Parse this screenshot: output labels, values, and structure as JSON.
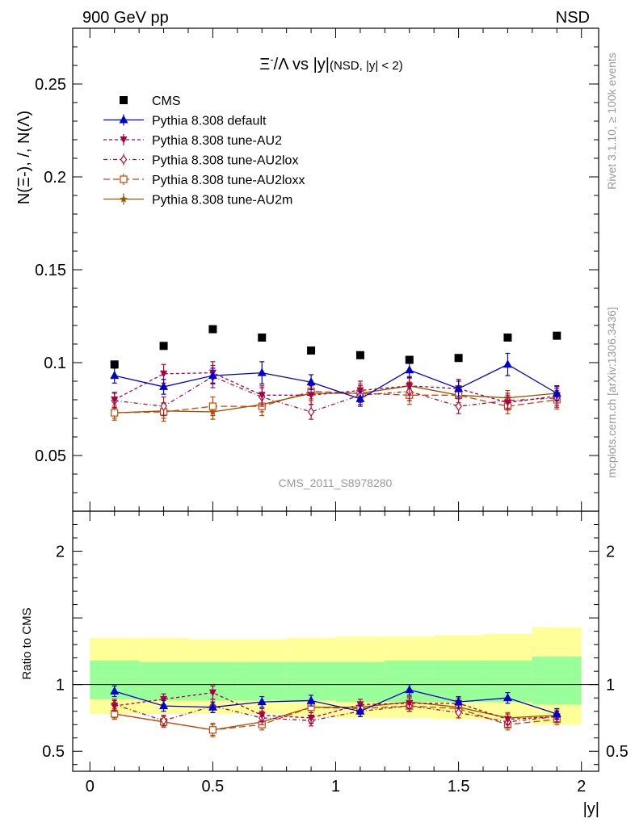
{
  "header": {
    "left": "900 GeV pp",
    "right": "NSD"
  },
  "watermarks": {
    "analysis": "CMS_2011_S8978280",
    "rivet": "Rivet 3.1.10, ≥ 100k events",
    "mcplots": "mcplots.cern.ch [arXiv:1306.3436]"
  },
  "chart_data": {
    "type": "scatter",
    "title": "Ξ-/Λ vs |y|(NSD, |y| < 2)",
    "title_cut": "(NSD, |y| < 2)",
    "xlabel": "|y|",
    "ylabel": "N(Ξ-), /, N(Λ)",
    "ratio_ylabel": "Ratio to CMS",
    "xlim": [
      -0.07,
      2.07
    ],
    "ylim": [
      0.02,
      0.28
    ],
    "ratio_ylim": [
      0.35,
      2.3
    ],
    "x_ticks": [
      "0",
      "0.5",
      "1",
      "1.5",
      "2"
    ],
    "y_ticks": [
      "0.05",
      "0.1",
      "0.15",
      "0.2",
      "0.25"
    ],
    "ratio_y_ticks": [
      "0.5",
      "1",
      "2"
    ],
    "legend_position": "top-left",
    "x": [
      0.1,
      0.3,
      0.5,
      0.7,
      0.9,
      1.1,
      1.3,
      1.5,
      1.7,
      1.9
    ],
    "bin_edges": [
      0.0,
      0.2,
      0.4,
      0.6,
      0.8,
      1.0,
      1.2,
      1.4,
      1.6,
      1.8,
      2.0
    ],
    "ratio_band_inner": [
      {
        "lo": 0.89,
        "hi": 1.18
      },
      {
        "lo": 0.88,
        "hi": 1.17
      },
      {
        "lo": 0.88,
        "hi": 1.17
      },
      {
        "lo": 0.88,
        "hi": 1.17
      },
      {
        "lo": 0.88,
        "hi": 1.17
      },
      {
        "lo": 0.87,
        "hi": 1.17
      },
      {
        "lo": 0.87,
        "hi": 1.18
      },
      {
        "lo": 0.87,
        "hi": 1.18
      },
      {
        "lo": 0.87,
        "hi": 1.18
      },
      {
        "lo": 0.85,
        "hi": 1.21
      }
    ],
    "ratio_band_outer": [
      {
        "lo": 0.78,
        "hi": 1.35
      },
      {
        "lo": 0.78,
        "hi": 1.35
      },
      {
        "lo": 0.78,
        "hi": 1.34
      },
      {
        "lo": 0.78,
        "hi": 1.34
      },
      {
        "lo": 0.76,
        "hi": 1.35
      },
      {
        "lo": 0.75,
        "hi": 1.36
      },
      {
        "lo": 0.75,
        "hi": 1.36
      },
      {
        "lo": 0.74,
        "hi": 1.37
      },
      {
        "lo": 0.74,
        "hi": 1.38
      },
      {
        "lo": 0.7,
        "hi": 1.43
      }
    ],
    "series": [
      {
        "name": "CMS",
        "color": "#000000",
        "marker": "square-filled",
        "line": "none",
        "values": [
          0.099,
          0.109,
          0.118,
          0.1135,
          0.1065,
          0.104,
          0.1015,
          0.1025,
          0.1135,
          0.1145
        ],
        "errors": [
          0,
          0,
          0,
          0,
          0,
          0,
          0,
          0,
          0,
          0
        ],
        "ratio": [
          1,
          1,
          1,
          1,
          1,
          1,
          1,
          1,
          1,
          1
        ],
        "ratio_errors": [
          0,
          0,
          0,
          0,
          0,
          0,
          0,
          0,
          0,
          0
        ]
      },
      {
        "name": "Pythia 8.308 default",
        "color": "#0000cc",
        "marker": "triangle-up-filled",
        "line": "solid",
        "values": [
          0.093,
          0.087,
          0.093,
          0.0945,
          0.0895,
          0.0805,
          0.096,
          0.086,
          0.099,
          0.0835
        ],
        "errors": [
          0.004,
          0.004,
          0.004,
          0.006,
          0.004,
          0.004,
          0.004,
          0.004,
          0.006,
          0.004
        ],
        "ratio": [
          0.95,
          0.84,
          0.83,
          0.87,
          0.88,
          0.8,
          0.96,
          0.87,
          0.9,
          0.78
        ],
        "ratio_errors": [
          0.04,
          0.04,
          0.04,
          0.04,
          0.04,
          0.04,
          0.04,
          0.04,
          0.04,
          0.04
        ]
      },
      {
        "name": "Pythia 8.308 tune-AU2",
        "color": "#aa0044",
        "marker": "triangle-down-filled",
        "line": "dashed",
        "values": [
          0.08,
          0.094,
          0.0945,
          0.0825,
          0.0825,
          0.085,
          0.0875,
          0.086,
          0.0785,
          0.082
        ],
        "errors": [
          0.004,
          0.005,
          0.006,
          0.005,
          0.005,
          0.005,
          0.005,
          0.005,
          0.004,
          0.005
        ],
        "ratio": [
          0.84,
          0.89,
          0.94,
          0.77,
          0.75,
          0.85,
          0.86,
          0.86,
          0.74,
          0.76
        ],
        "ratio_errors": [
          0.04,
          0.04,
          0.05,
          0.05,
          0.04,
          0.04,
          0.04,
          0.04,
          0.04,
          0.04
        ]
      },
      {
        "name": "Pythia 8.308 tune-AU2lox",
        "color": "#aa1133",
        "marker": "diamond-open",
        "line": "dash-dot",
        "values": [
          0.0795,
          0.0765,
          0.0925,
          0.0815,
          0.0735,
          0.0825,
          0.0845,
          0.0765,
          0.0795,
          0.081
        ],
        "errors": [
          0.004,
          0.005,
          0.006,
          0.005,
          0.004,
          0.005,
          0.005,
          0.004,
          0.004,
          0.005
        ],
        "ratio": [
          0.85,
          0.73,
          0.84,
          0.75,
          0.73,
          0.8,
          0.84,
          0.79,
          0.72,
          0.76
        ],
        "ratio_errors": [
          0.04,
          0.04,
          0.05,
          0.05,
          0.04,
          0.04,
          0.04,
          0.04,
          0.04,
          0.04
        ]
      },
      {
        "name": "Pythia 8.308 tune-AU2loxx",
        "color": "#cc4400",
        "marker": "square-open",
        "line": "long-dash",
        "values": [
          0.073,
          0.0735,
          0.0765,
          0.0765,
          0.0845,
          0.0835,
          0.0825,
          0.0825,
          0.0765,
          0.08
        ],
        "errors": [
          0.004,
          0.005,
          0.005,
          0.005,
          0.004,
          0.005,
          0.005,
          0.005,
          0.004,
          0.005
        ],
        "ratio": [
          0.78,
          0.72,
          0.66,
          0.7,
          0.83,
          0.82,
          0.84,
          0.82,
          0.7,
          0.74
        ],
        "ratio_errors": [
          0.04,
          0.04,
          0.05,
          0.04,
          0.04,
          0.04,
          0.04,
          0.04,
          0.04,
          0.04
        ]
      },
      {
        "name": "Pythia 8.308 tune-AU2m",
        "color": "#995500",
        "marker": "star-filled",
        "line": "solid",
        "values": [
          0.073,
          0.074,
          0.0735,
          0.0775,
          0.0835,
          0.0835,
          0.0875,
          0.0825,
          0.081,
          0.0835
        ],
        "errors": [
          0.003,
          0.004,
          0.004,
          0.004,
          0.004,
          0.004,
          0.004,
          0.004,
          0.004,
          0.004
        ],
        "ratio": [
          0.78,
          0.72,
          0.66,
          0.72,
          0.83,
          0.83,
          0.87,
          0.83,
          0.75,
          0.77
        ],
        "ratio_errors": [
          0.03,
          0.04,
          0.04,
          0.04,
          0.04,
          0.04,
          0.04,
          0.04,
          0.04,
          0.04
        ]
      }
    ]
  }
}
